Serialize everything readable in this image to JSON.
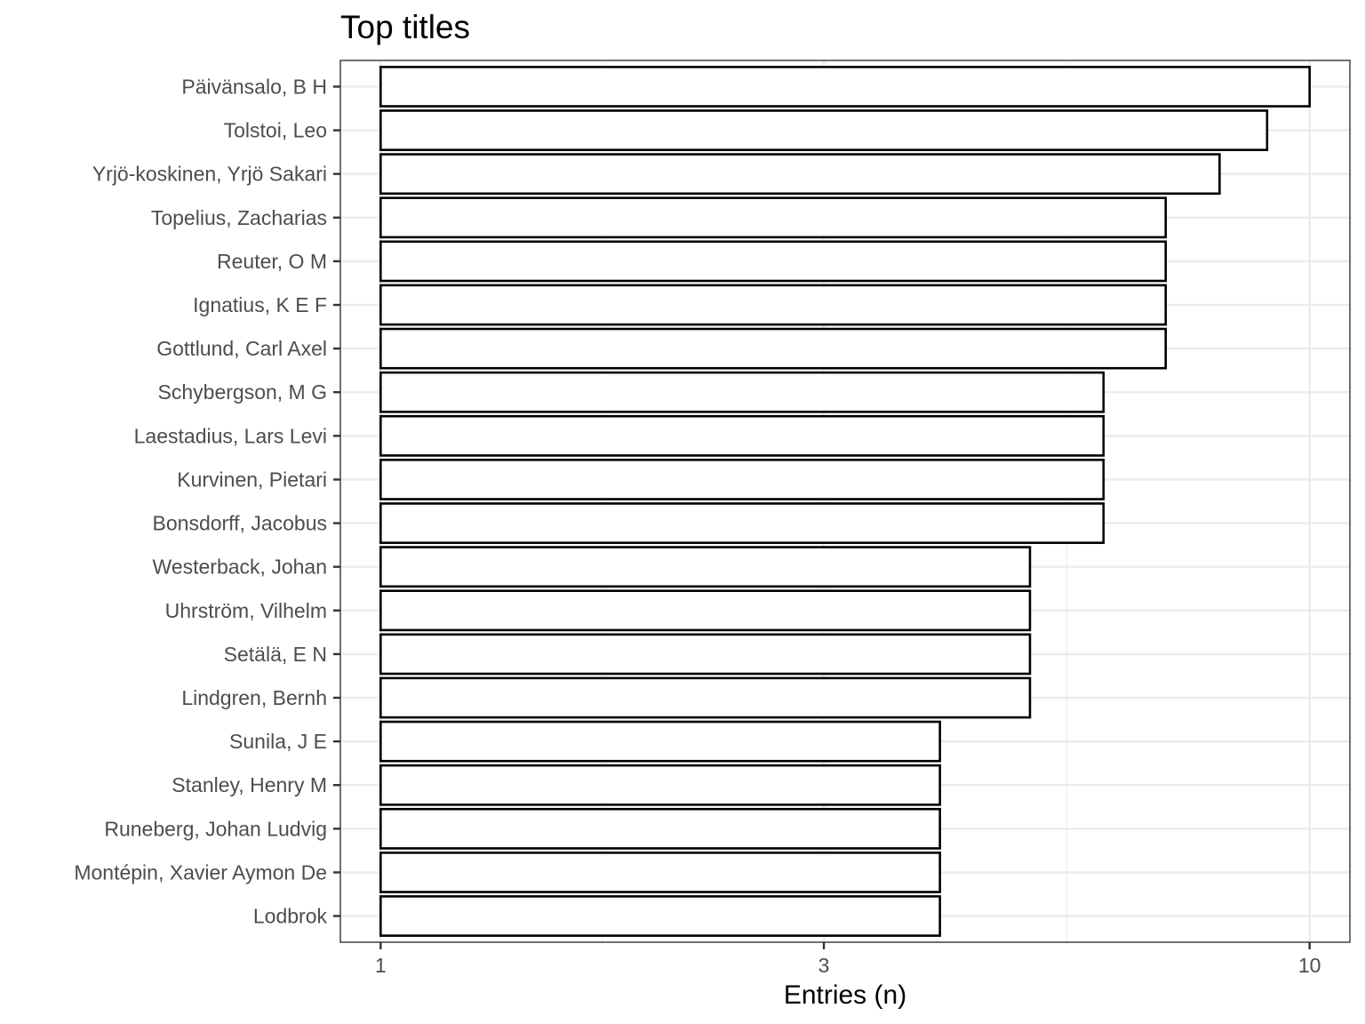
{
  "chart_data": {
    "type": "bar",
    "orientation": "horizontal",
    "title": "Top titles",
    "xlabel": "Entries (n)",
    "ylabel": "",
    "x_scale": "log10",
    "xlim": [
      0.905,
      11.05
    ],
    "x_ticks": [
      1,
      3,
      10
    ],
    "x_tick_labels": [
      "1",
      "3",
      "10"
    ],
    "grid": true,
    "legend": "none",
    "categories": [
      "Päivänsalo, B H",
      "Tolstoi, Leo",
      "Yrjö-koskinen, Yrjö Sakari",
      "Topelius, Zacharias",
      "Reuter, O M",
      "Ignatius, K E F",
      "Gottlund, Carl Axel",
      "Schybergson, M G",
      "Laestadius, Lars Levi",
      "Kurvinen, Pietari",
      "Bonsdorff, Jacobus",
      "Westerback, Johan",
      "Uhrström, Vilhelm",
      "Setälä, E N",
      "Lindgren, Bernh",
      "Sunila, J E",
      "Stanley, Henry M",
      "Runeberg, Johan Ludvig",
      "Montépin, Xavier Aymon De",
      "Lodbrok"
    ],
    "values": [
      10,
      9,
      8,
      7,
      7,
      7,
      7,
      6,
      6,
      6,
      6,
      5,
      5,
      5,
      5,
      4,
      4,
      4,
      4,
      4
    ],
    "colors": {
      "bar_fill": "#ffffff",
      "bar_stroke": "#000000",
      "grid": "#ebebeb",
      "panel_border": "#333333",
      "tick_text": "#4d4d4d"
    }
  }
}
